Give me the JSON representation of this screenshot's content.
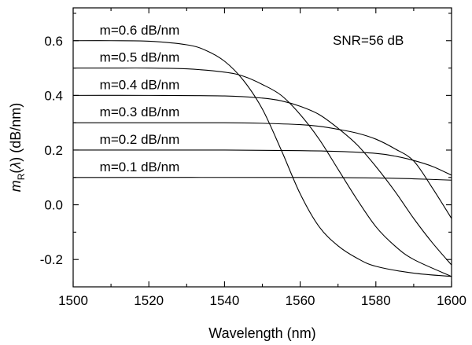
{
  "chart_data": {
    "type": "line",
    "xlabel": "Wavelength (nm)",
    "ylabel": {
      "main": "m",
      "subscript": "R",
      "lambda_open": "(",
      "lambda": "λ",
      "lambda_close": ")",
      "unit": " (dB/nm)"
    },
    "xlim": [
      1500,
      1600
    ],
    "ylim": [
      -0.3,
      0.72
    ],
    "x_ticks": [
      1500,
      1520,
      1540,
      1560,
      1580,
      1600
    ],
    "x_tick_labels": [
      "1500",
      "1520",
      "1540",
      "1560",
      "1580",
      "1600"
    ],
    "x_minor_ticks": [
      1510,
      1530,
      1550,
      1570,
      1590
    ],
    "y_ticks": [
      -0.2,
      0.0,
      0.2,
      0.4,
      0.6
    ],
    "y_tick_labels": [
      "-0.2",
      "0.0",
      "0.2",
      "0.4",
      "0.6"
    ],
    "y_minor_ticks": [
      -0.1,
      0.1,
      0.3,
      0.5,
      0.7
    ],
    "grid": false,
    "annotation": "SNR=56 dB",
    "series": [
      {
        "name": "m=0.6 dB/nm",
        "x": [
          1500,
          1510,
          1520,
          1530,
          1535,
          1540,
          1545,
          1550,
          1555,
          1560,
          1565,
          1570,
          1575,
          1580,
          1590,
          1600
        ],
        "y": [
          0.6,
          0.6,
          0.598,
          0.585,
          0.565,
          0.525,
          0.455,
          0.35,
          0.2,
          0.04,
          -0.08,
          -0.15,
          -0.195,
          -0.225,
          -0.25,
          -0.262
        ]
      },
      {
        "name": "m=0.5 dB/nm",
        "x": [
          1500,
          1510,
          1520,
          1530,
          1540,
          1545,
          1550,
          1555,
          1560,
          1565,
          1570,
          1575,
          1580,
          1585,
          1590,
          1600
        ],
        "y": [
          0.5,
          0.5,
          0.5,
          0.497,
          0.485,
          0.47,
          0.44,
          0.4,
          0.33,
          0.24,
          0.13,
          0.02,
          -0.08,
          -0.15,
          -0.2,
          -0.262
        ]
      },
      {
        "name": "m=0.4 dB/nm",
        "x": [
          1500,
          1520,
          1540,
          1550,
          1555,
          1560,
          1565,
          1570,
          1575,
          1580,
          1585,
          1590,
          1595,
          1600
        ],
        "y": [
          0.4,
          0.4,
          0.398,
          0.39,
          0.38,
          0.36,
          0.33,
          0.28,
          0.22,
          0.14,
          0.05,
          -0.05,
          -0.14,
          -0.22
        ]
      },
      {
        "name": "m=0.3 dB/nm",
        "x": [
          1500,
          1520,
          1540,
          1550,
          1560,
          1565,
          1570,
          1575,
          1580,
          1585,
          1590,
          1595,
          1600
        ],
        "y": [
          0.3,
          0.3,
          0.3,
          0.298,
          0.293,
          0.287,
          0.276,
          0.262,
          0.24,
          0.205,
          0.16,
          0.06,
          -0.05
        ]
      },
      {
        "name": "m=0.2 dB/nm",
        "x": [
          1500,
          1540,
          1560,
          1570,
          1580,
          1585,
          1590,
          1595,
          1600
        ],
        "y": [
          0.2,
          0.2,
          0.198,
          0.195,
          0.188,
          0.178,
          0.162,
          0.14,
          0.108
        ]
      },
      {
        "name": "m=0.1 dB/nm",
        "x": [
          1500,
          1560,
          1580,
          1590,
          1600
        ],
        "y": [
          0.1,
          0.1,
          0.098,
          0.095,
          0.09
        ]
      }
    ]
  }
}
